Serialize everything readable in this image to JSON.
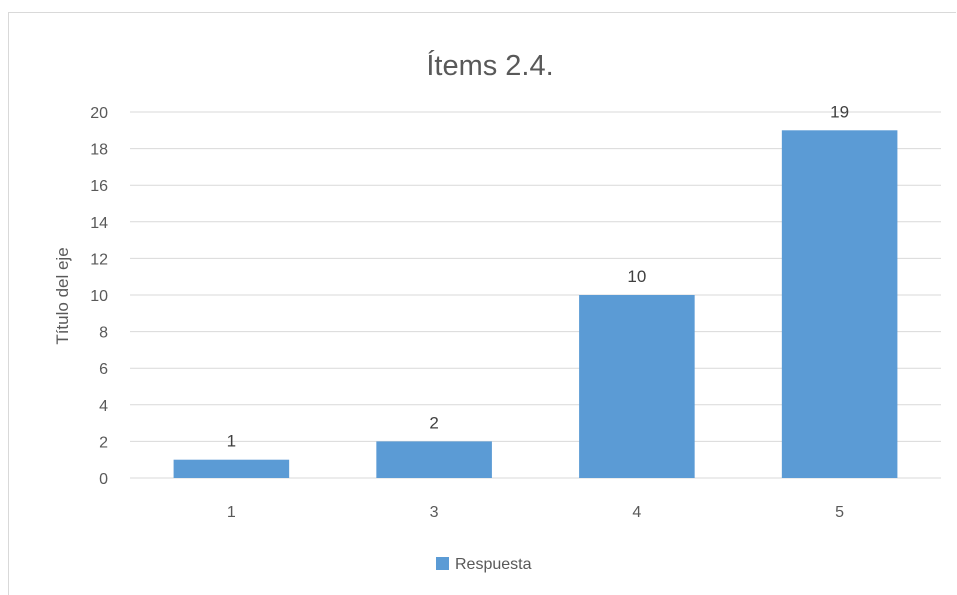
{
  "chart_data": {
    "type": "bar",
    "title": "Ítems 2.4.",
    "xlabel": "",
    "ylabel": "Título del eje",
    "categories": [
      "1",
      "3",
      "4",
      "5"
    ],
    "series": [
      {
        "name": "Respuesta",
        "values": [
          1,
          2,
          10,
          19
        ],
        "color": "#5b9bd5"
      }
    ],
    "ylim": [
      0,
      20
    ],
    "yticks": [
      "0",
      "2",
      "4",
      "6",
      "8",
      "10",
      "12",
      "14",
      "16",
      "18",
      "20"
    ],
    "data_labels": [
      "1",
      "2",
      "10",
      "19"
    ],
    "grid": true,
    "legend_position": "bottom"
  }
}
